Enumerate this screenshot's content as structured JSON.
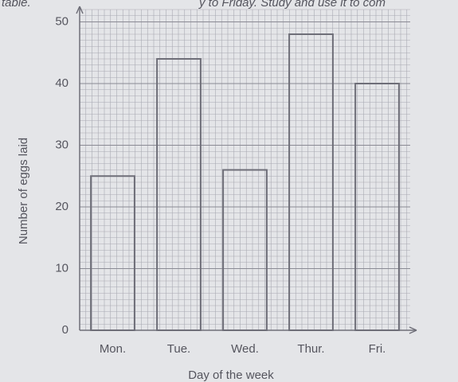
{
  "chart_data": {
    "type": "bar",
    "annotations": [
      "table.",
      "y to Friday. Study and use it to com"
    ],
    "xlabel": "Day of the week",
    "ylabel": "Number of eggs laid",
    "categories": [
      "Mon.",
      "Tue.",
      "Wed.",
      "Thur.",
      "Fri."
    ],
    "values": [
      25,
      44,
      26,
      48,
      40
    ],
    "color": "#6e6e78",
    "ylim": [
      0,
      52
    ],
    "yticks": [
      0,
      10,
      20,
      30,
      40,
      50
    ],
    "grid": true
  }
}
